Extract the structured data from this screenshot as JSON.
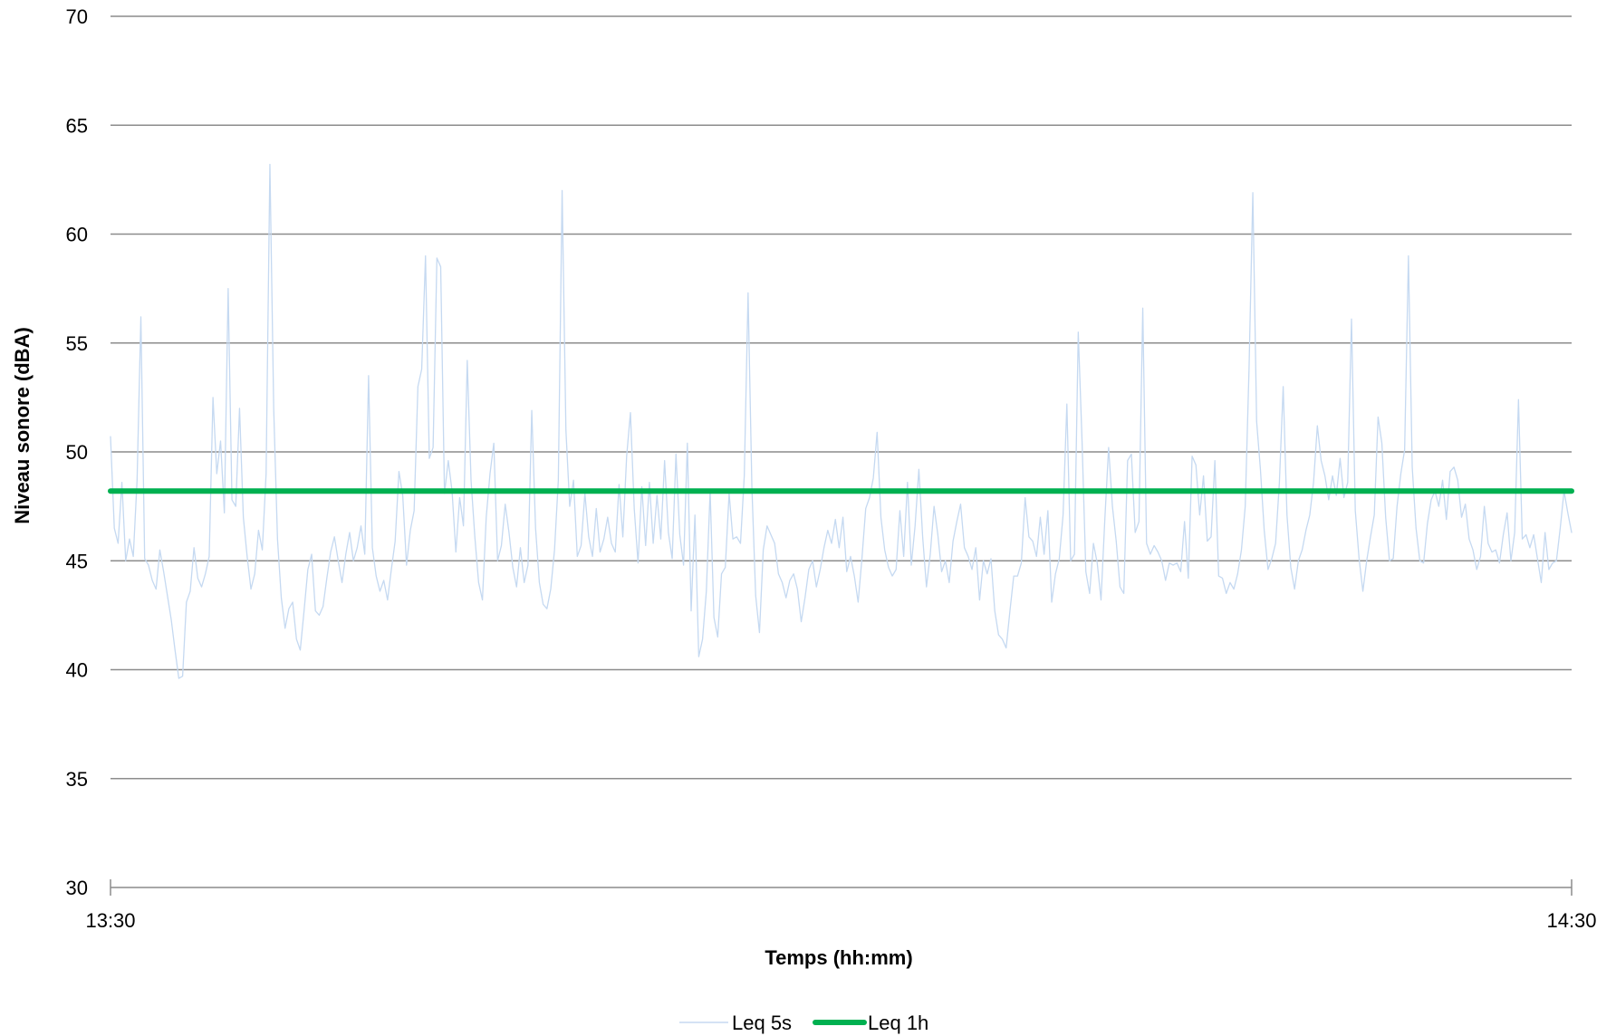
{
  "chart_data": {
    "type": "line",
    "xlabel": "Temps (hh:mm)",
    "ylabel": "Niveau sonore (dBA)",
    "x_ticks": [
      "13:30",
      "14:30"
    ],
    "x_range": [
      "13:30",
      "14:30"
    ],
    "ylim": [
      30,
      70
    ],
    "y_ticks": [
      "30",
      "35",
      "40",
      "45",
      "50",
      "55",
      "60",
      "65",
      "70"
    ],
    "grid": true,
    "legend_position": "bottom",
    "series": [
      {
        "name": "Leq 5s",
        "color": "#c5d9f1",
        "x_step_minutes": 0.5,
        "values": [
          50.7,
          46.5,
          45.8,
          48.6,
          45.0,
          46.0,
          45.2,
          48.7,
          56.2,
          45.1,
          44.8,
          44.1,
          43.7,
          45.5,
          44.5,
          43.4,
          42.3,
          40.9,
          39.6,
          39.7,
          43.1,
          43.6,
          45.6,
          44.2,
          43.8,
          44.4,
          45.2,
          52.5,
          49.0,
          50.5,
          47.2,
          57.5,
          47.8,
          47.5,
          52.0,
          47.0,
          45.2,
          43.7,
          44.4,
          46.4,
          45.5,
          49.0,
          63.2,
          52.0,
          46.0,
          43.3,
          41.9,
          42.8,
          43.1,
          41.4,
          40.9,
          42.7,
          44.6,
          45.3,
          42.7,
          42.5,
          42.9,
          44.2,
          45.4,
          46.1,
          45.0,
          44.0,
          45.3,
          46.3,
          45.0,
          45.6,
          46.6,
          45.3,
          53.5,
          45.6,
          44.3,
          43.6,
          44.1,
          43.2,
          44.6,
          45.9,
          49.1,
          48.0,
          44.8,
          46.4,
          47.3,
          53.0,
          53.8,
          59.0,
          49.7,
          50.2,
          58.9,
          58.5,
          48.1,
          49.6,
          48.2,
          45.4,
          47.9,
          46.6,
          54.2,
          48.7,
          46.1,
          44.0,
          43.2,
          47.0,
          49.0,
          50.4,
          45.0,
          45.7,
          47.6,
          46.3,
          44.7,
          43.8,
          45.6,
          44.0,
          44.8,
          51.9,
          46.5,
          44.0,
          43.0,
          42.8,
          43.7,
          45.5,
          48.7,
          62.0,
          51.0,
          47.5,
          48.7,
          45.2,
          45.7,
          48.1,
          46.1,
          45.2,
          47.4,
          45.4,
          46.0,
          47.0,
          45.8,
          45.4,
          48.5,
          46.1,
          49.8,
          51.8,
          47.4,
          44.9,
          48.4,
          45.7,
          48.6,
          45.8,
          48.0,
          46.0,
          49.6,
          46.3,
          45.1,
          49.9,
          46.2,
          44.8,
          50.4,
          42.7,
          47.1,
          40.6,
          41.4,
          43.6,
          48.2,
          42.4,
          41.5,
          44.4,
          44.7,
          48.1,
          46.0,
          46.1,
          45.8,
          48.9,
          57.3,
          48.4,
          43.4,
          41.7,
          45.5,
          46.6,
          46.2,
          45.8,
          44.4,
          44.0,
          43.3,
          44.1,
          44.4,
          43.7,
          42.2,
          43.3,
          44.6,
          45.0,
          43.8,
          44.6,
          45.6,
          46.4,
          45.8,
          46.9,
          45.6,
          47.0,
          44.5,
          45.2,
          44.3,
          43.1,
          45.1,
          47.4,
          47.9,
          48.8,
          50.9,
          47.0,
          45.5,
          44.7,
          44.3,
          44.6,
          47.3,
          45.2,
          48.6,
          44.8,
          46.6,
          49.2,
          46.1,
          43.8,
          45.3,
          47.5,
          46.2,
          44.5,
          45.0,
          44.0,
          45.9,
          46.8,
          47.6,
          45.6,
          45.2,
          44.6,
          45.6,
          43.2,
          45.0,
          44.4,
          45.1,
          42.7,
          41.6,
          41.4,
          41.0,
          42.7,
          44.3,
          44.3,
          44.9,
          47.9,
          46.1,
          45.9,
          45.2,
          47.0,
          45.3,
          47.3,
          43.1,
          44.4,
          45.1,
          47.1,
          52.2,
          45.0,
          45.3,
          55.5,
          50.5,
          44.5,
          43.5,
          45.8,
          44.9,
          43.2,
          46.9,
          50.2,
          47.5,
          45.9,
          43.8,
          43.5,
          49.6,
          49.9,
          46.3,
          46.8,
          56.6,
          45.8,
          45.3,
          45.7,
          45.4,
          45.0,
          44.1,
          44.9,
          44.8,
          44.9,
          44.5,
          46.8,
          44.2,
          49.8,
          49.4,
          47.1,
          48.9,
          45.9,
          46.1,
          49.6,
          44.3,
          44.2,
          43.5,
          44.0,
          43.7,
          44.4,
          45.5,
          47.5,
          53.8,
          61.9,
          51.4,
          49.2,
          46.4,
          44.6,
          45.1,
          45.8,
          48.6,
          53.0,
          47.1,
          44.7,
          43.7,
          45.0,
          45.5,
          46.4,
          47.1,
          48.6,
          51.2,
          49.6,
          48.9,
          47.8,
          48.9,
          48.0,
          49.7,
          47.9,
          48.6,
          56.1,
          47.3,
          45.1,
          43.6,
          45.0,
          46.1,
          47.1,
          51.6,
          50.4,
          47.0,
          45.0,
          45.1,
          47.5,
          49.0,
          50.1,
          59.0,
          49.3,
          46.5,
          45.0,
          44.9,
          46.7,
          47.8,
          48.2,
          47.5,
          48.7,
          46.9,
          49.1,
          49.3,
          48.7,
          47.0,
          47.6,
          46.0,
          45.5,
          44.6,
          45.2,
          47.5,
          45.8,
          45.4,
          45.5,
          44.9,
          46.2,
          47.2,
          45.0,
          46.3,
          52.4,
          46.0,
          46.2,
          45.6,
          46.2,
          45.1,
          44.0,
          46.3,
          44.6,
          44.9,
          45.0,
          46.5,
          48.2,
          47.2,
          46.3
        ]
      },
      {
        "name": "Leq 1h",
        "color": "#00b050",
        "values": [
          48.2,
          48.2
        ]
      }
    ]
  }
}
